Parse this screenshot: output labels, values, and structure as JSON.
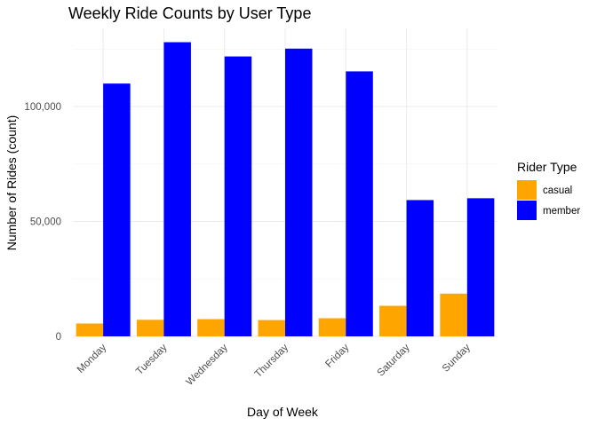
{
  "chart_data": {
    "type": "bar",
    "title": "Weekly Ride Counts by User Type",
    "xlabel": "Day of Week",
    "ylabel": "Number of Rides (count)",
    "categories": [
      "Monday",
      "Tuesday",
      "Wednesday",
      "Thursday",
      "Friday",
      "Saturday",
      "Sunday"
    ],
    "series": [
      {
        "name": "casual",
        "color": "#FFA500",
        "values": [
          5600,
          7200,
          7500,
          7100,
          7900,
          13300,
          18600
        ]
      },
      {
        "name": "member",
        "color": "#0000FF",
        "values": [
          110000,
          128000,
          121800,
          125200,
          115300,
          59300,
          60100
        ]
      }
    ],
    "ylim": [
      0,
      134000
    ],
    "yticks": [
      0,
      50000,
      100000
    ],
    "ytick_labels": [
      "0",
      "50,000",
      "100,000"
    ],
    "legend": {
      "title": "Rider Type",
      "position": "right"
    },
    "grid": true
  }
}
